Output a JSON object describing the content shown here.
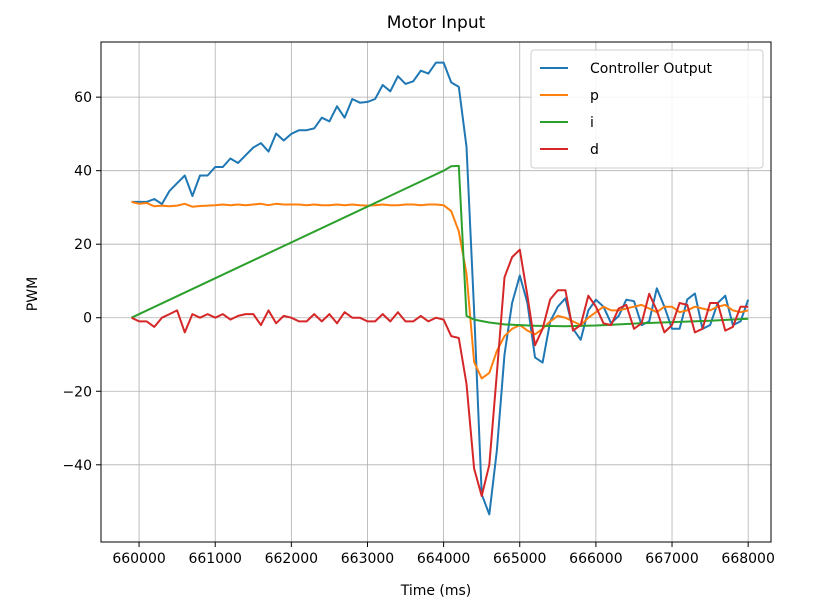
{
  "chart_data": {
    "type": "line",
    "title": "Motor Input",
    "xlabel": "Time (ms)",
    "ylabel": "PWM",
    "xlim": [
      659500,
      668300
    ],
    "ylim": [
      -61,
      75
    ],
    "xticks": [
      660000,
      661000,
      662000,
      663000,
      664000,
      665000,
      666000,
      667000,
      668000
    ],
    "xtick_labels": [
      "660000",
      "661000",
      "662000",
      "663000",
      "664000",
      "665000",
      "666000",
      "667000",
      "668000"
    ],
    "yticks": [
      -40,
      -20,
      0,
      20,
      40,
      60
    ],
    "ytick_labels": [
      "−40",
      "−20",
      "0",
      "20",
      "40",
      "60"
    ],
    "grid": true,
    "legend_position": "top-right",
    "series": [
      {
        "name": "Controller Output",
        "color": "#1f77b4",
        "points": [
          [
            659900,
            31.5
          ],
          [
            660000,
            31.5
          ],
          [
            660100,
            31.5
          ],
          [
            660200,
            32.3
          ],
          [
            660300,
            30.9
          ],
          [
            660400,
            34.5
          ],
          [
            660500,
            36.6
          ],
          [
            660600,
            38.7
          ],
          [
            660700,
            33.1
          ],
          [
            660800,
            38.7
          ],
          [
            660900,
            38.7
          ],
          [
            661000,
            41.0
          ],
          [
            661100,
            41.0
          ],
          [
            661200,
            43.3
          ],
          [
            661300,
            42.1
          ],
          [
            661400,
            44.2
          ],
          [
            661500,
            46.3
          ],
          [
            661600,
            47.5
          ],
          [
            661700,
            45.2
          ],
          [
            661800,
            50.1
          ],
          [
            661900,
            48.2
          ],
          [
            662000,
            50.0
          ],
          [
            662100,
            51.0
          ],
          [
            662200,
            51.0
          ],
          [
            662300,
            51.5
          ],
          [
            662400,
            54.4
          ],
          [
            662500,
            53.4
          ],
          [
            662600,
            57.5
          ],
          [
            662700,
            54.4
          ],
          [
            662800,
            59.5
          ],
          [
            662900,
            58.5
          ],
          [
            663000,
            58.7
          ],
          [
            663100,
            59.5
          ],
          [
            663200,
            63.3
          ],
          [
            663300,
            61.6
          ],
          [
            663400,
            65.7
          ],
          [
            663500,
            63.6
          ],
          [
            663600,
            64.3
          ],
          [
            663700,
            67.2
          ],
          [
            663800,
            66.4
          ],
          [
            663900,
            69.4
          ],
          [
            664000,
            69.4
          ],
          [
            664100,
            64.0
          ],
          [
            664200,
            62.8
          ],
          [
            664300,
            46.5
          ],
          [
            664400,
            2.0
          ],
          [
            664500,
            -48.0
          ],
          [
            664600,
            -53.5
          ],
          [
            664700,
            -36.0
          ],
          [
            664800,
            -10.0
          ],
          [
            664900,
            4.0
          ],
          [
            665000,
            11.5
          ],
          [
            665100,
            4.0
          ],
          [
            665200,
            -10.8
          ],
          [
            665300,
            -12.2
          ],
          [
            665400,
            -1.0
          ],
          [
            665500,
            3.0
          ],
          [
            665600,
            5.3
          ],
          [
            665700,
            -3.0
          ],
          [
            665800,
            -6.0
          ],
          [
            665900,
            2.0
          ],
          [
            666000,
            4.9
          ],
          [
            666100,
            3.0
          ],
          [
            666200,
            -1.5
          ],
          [
            666300,
            0.5
          ],
          [
            666400,
            4.9
          ],
          [
            666500,
            4.5
          ],
          [
            666600,
            -2.0
          ],
          [
            666700,
            -1.0
          ],
          [
            666800,
            8.0
          ],
          [
            666900,
            3.0
          ],
          [
            667000,
            -3.0
          ],
          [
            667100,
            -3.0
          ],
          [
            667200,
            5.0
          ],
          [
            667300,
            6.6
          ],
          [
            667400,
            -3.0
          ],
          [
            667500,
            -2.0
          ],
          [
            667600,
            4.0
          ],
          [
            667700,
            6.0
          ],
          [
            667800,
            -2.0
          ],
          [
            667900,
            -1.0
          ],
          [
            668000,
            4.9
          ]
        ]
      },
      {
        "name": "p",
        "color": "#ff7f0e",
        "points": [
          [
            659900,
            31.5
          ],
          [
            660000,
            31.0
          ],
          [
            660100,
            31.2
          ],
          [
            660200,
            30.3
          ],
          [
            660300,
            30.5
          ],
          [
            660400,
            30.3
          ],
          [
            660500,
            30.5
          ],
          [
            660600,
            31.0
          ],
          [
            660700,
            30.2
          ],
          [
            660800,
            30.4
          ],
          [
            660900,
            30.5
          ],
          [
            661000,
            30.6
          ],
          [
            661100,
            30.8
          ],
          [
            661200,
            30.6
          ],
          [
            661300,
            30.8
          ],
          [
            661400,
            30.6
          ],
          [
            661500,
            30.8
          ],
          [
            661600,
            31.0
          ],
          [
            661700,
            30.6
          ],
          [
            661800,
            31.0
          ],
          [
            661900,
            30.8
          ],
          [
            662000,
            30.8
          ],
          [
            662100,
            30.8
          ],
          [
            662200,
            30.6
          ],
          [
            662300,
            30.8
          ],
          [
            662400,
            30.6
          ],
          [
            662500,
            30.6
          ],
          [
            662600,
            30.8
          ],
          [
            662700,
            30.6
          ],
          [
            662800,
            30.8
          ],
          [
            662900,
            30.6
          ],
          [
            663000,
            30.5
          ],
          [
            663100,
            30.6
          ],
          [
            663200,
            30.8
          ],
          [
            663300,
            30.6
          ],
          [
            663400,
            30.6
          ],
          [
            663500,
            30.8
          ],
          [
            663600,
            30.8
          ],
          [
            663700,
            30.6
          ],
          [
            663800,
            30.8
          ],
          [
            663900,
            30.8
          ],
          [
            664000,
            30.6
          ],
          [
            664100,
            29.0
          ],
          [
            664200,
            23.5
          ],
          [
            664300,
            12.0
          ],
          [
            664400,
            -12.0
          ],
          [
            664500,
            -16.5
          ],
          [
            664600,
            -15.0
          ],
          [
            664700,
            -9.0
          ],
          [
            664800,
            -5.0
          ],
          [
            664900,
            -3.0
          ],
          [
            665000,
            -2.0
          ],
          [
            665100,
            -3.5
          ],
          [
            665200,
            -4.5
          ],
          [
            665300,
            -3.0
          ],
          [
            665400,
            -1.0
          ],
          [
            665500,
            0.5
          ],
          [
            665600,
            0.0
          ],
          [
            665700,
            -1.0
          ],
          [
            665800,
            -2.0
          ],
          [
            665900,
            0.0
          ],
          [
            666000,
            1.5
          ],
          [
            666100,
            3.0
          ],
          [
            666200,
            2.0
          ],
          [
            666300,
            2.0
          ],
          [
            666400,
            2.5
          ],
          [
            666500,
            3.0
          ],
          [
            666600,
            3.5
          ],
          [
            666700,
            2.5
          ],
          [
            666800,
            1.5
          ],
          [
            666900,
            3.0
          ],
          [
            667000,
            3.0
          ],
          [
            667100,
            1.5
          ],
          [
            667200,
            2.0
          ],
          [
            667300,
            3.0
          ],
          [
            667400,
            2.5
          ],
          [
            667500,
            2.0
          ],
          [
            667600,
            3.0
          ],
          [
            667700,
            3.5
          ],
          [
            667800,
            2.0
          ],
          [
            667900,
            1.5
          ],
          [
            668000,
            2.0
          ]
        ]
      },
      {
        "name": "i",
        "color": "#2ca02c",
        "points": [
          [
            659900,
            0.0
          ],
          [
            664000,
            40.0
          ],
          [
            664100,
            41.2
          ],
          [
            664200,
            41.3
          ],
          [
            664300,
            0.5
          ],
          [
            664400,
            -0.5
          ],
          [
            664600,
            -1.3
          ],
          [
            664800,
            -1.8
          ],
          [
            665000,
            -2.0
          ],
          [
            665200,
            -2.2
          ],
          [
            665600,
            -2.3
          ],
          [
            666000,
            -2.1
          ],
          [
            666500,
            -1.6
          ],
          [
            667000,
            -1.2
          ],
          [
            667500,
            -0.8
          ],
          [
            668000,
            -0.3
          ]
        ]
      },
      {
        "name": "d",
        "color": "#d62728",
        "points": [
          [
            659900,
            0.0
          ],
          [
            660000,
            -1.0
          ],
          [
            660100,
            -1.0
          ],
          [
            660200,
            -2.5
          ],
          [
            660300,
            0.0
          ],
          [
            660400,
            1.0
          ],
          [
            660500,
            2.0
          ],
          [
            660600,
            -4.0
          ],
          [
            660700,
            1.0
          ],
          [
            660800,
            0.0
          ],
          [
            660900,
            1.0
          ],
          [
            661000,
            0.0
          ],
          [
            661100,
            1.0
          ],
          [
            661200,
            -0.5
          ],
          [
            661300,
            0.5
          ],
          [
            661400,
            1.0
          ],
          [
            661500,
            1.0
          ],
          [
            661600,
            -2.0
          ],
          [
            661700,
            2.0
          ],
          [
            661800,
            -1.5
          ],
          [
            661900,
            0.5
          ],
          [
            662000,
            0.0
          ],
          [
            662100,
            -1.0
          ],
          [
            662200,
            -1.0
          ],
          [
            662300,
            1.0
          ],
          [
            662400,
            -1.0
          ],
          [
            662500,
            1.0
          ],
          [
            662600,
            -1.5
          ],
          [
            662700,
            1.5
          ],
          [
            662800,
            0.0
          ],
          [
            662900,
            0.0
          ],
          [
            663000,
            -1.0
          ],
          [
            663100,
            -1.0
          ],
          [
            663200,
            1.0
          ],
          [
            663300,
            -1.0
          ],
          [
            663400,
            1.5
          ],
          [
            663500,
            -1.0
          ],
          [
            663600,
            -1.0
          ],
          [
            663700,
            0.5
          ],
          [
            663800,
            -1.0
          ],
          [
            663900,
            0.0
          ],
          [
            664000,
            -0.5
          ],
          [
            664100,
            -5.0
          ],
          [
            664200,
            -5.5
          ],
          [
            664300,
            -18.0
          ],
          [
            664400,
            -41.0
          ],
          [
            664500,
            -48.5
          ],
          [
            664600,
            -40.0
          ],
          [
            664700,
            -15.0
          ],
          [
            664800,
            11.0
          ],
          [
            664900,
            16.5
          ],
          [
            665000,
            18.5
          ],
          [
            665100,
            6.0
          ],
          [
            665200,
            -7.5
          ],
          [
            665300,
            -3.0
          ],
          [
            665400,
            5.0
          ],
          [
            665500,
            7.5
          ],
          [
            665600,
            7.5
          ],
          [
            665700,
            -3.5
          ],
          [
            665800,
            -2.0
          ],
          [
            665900,
            6.0
          ],
          [
            666000,
            3.0
          ],
          [
            666100,
            -1.5
          ],
          [
            666200,
            -2.0
          ],
          [
            666300,
            2.5
          ],
          [
            666400,
            3.5
          ],
          [
            666500,
            -3.0
          ],
          [
            666600,
            -1.5
          ],
          [
            666700,
            6.5
          ],
          [
            666800,
            2.0
          ],
          [
            666900,
            -4.0
          ],
          [
            667000,
            -2.0
          ],
          [
            667100,
            4.0
          ],
          [
            667200,
            3.5
          ],
          [
            667300,
            -4.0
          ],
          [
            667400,
            -3.0
          ],
          [
            667500,
            4.0
          ],
          [
            667600,
            4.0
          ],
          [
            667700,
            -3.5
          ],
          [
            667800,
            -2.5
          ],
          [
            667900,
            3.0
          ],
          [
            668000,
            3.0
          ]
        ]
      }
    ]
  }
}
